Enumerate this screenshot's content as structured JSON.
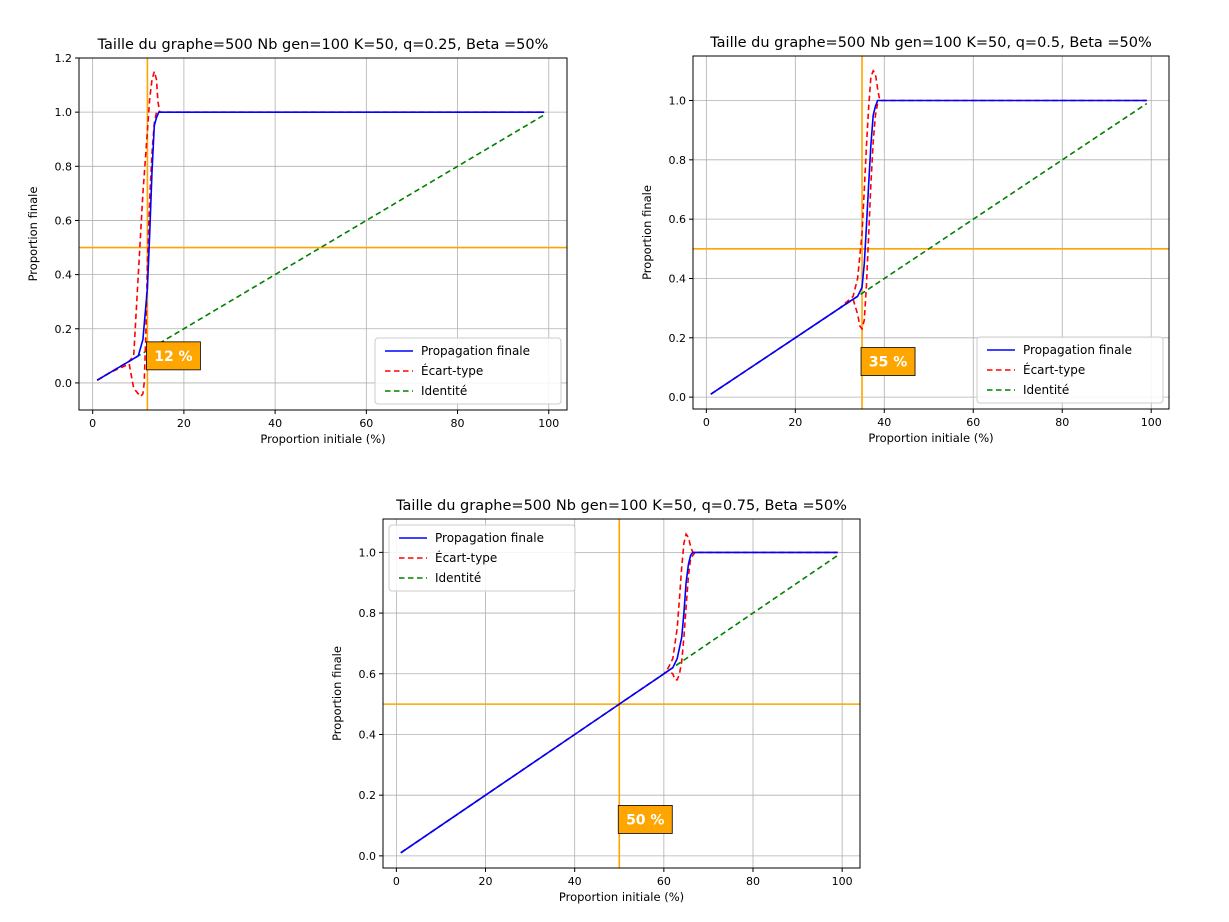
{
  "figure": {
    "colors": {
      "propagation": "#0000ff",
      "ecart": "#ff0000",
      "identite": "#008000",
      "threshold": "#ffa500",
      "grid": "#b0b0b0"
    }
  },
  "chart_data": [
    {
      "type": "line",
      "title": "Taille du graphe=500 Nb gen=100 K=50, q=0.25, Beta =50%",
      "xlabel": "Proportion initiale (%)",
      "ylabel": "Proportion finale",
      "xlim": [
        -3,
        104
      ],
      "ylim": [
        -0.1,
        1.2
      ],
      "xticks": [
        0,
        20,
        40,
        60,
        80,
        100
      ],
      "yticks": [
        0.0,
        0.2,
        0.4,
        0.6,
        0.8,
        1.0,
        1.2
      ],
      "ytick_labels": [
        "0.0",
        "0.2",
        "0.4",
        "0.6",
        "0.8",
        "1.0",
        "1.2"
      ],
      "grid": true,
      "legend_position": "lower-right",
      "vline_x": 12,
      "hline_y": 0.5,
      "annotation": {
        "text": "12 %",
        "x": 12,
        "y": 0.1
      },
      "series": [
        {
          "name": "Propagation finale",
          "style": "solid",
          "color": "#0000ff",
          "x": [
            1,
            4,
            8,
            10,
            11,
            12,
            12.5,
            13,
            13.5,
            14,
            14.5,
            15,
            20,
            40,
            60,
            80,
            99
          ],
          "y": [
            0.01,
            0.04,
            0.08,
            0.1,
            0.16,
            0.35,
            0.55,
            0.78,
            0.95,
            0.98,
            1.0,
            1.0,
            1.0,
            1.0,
            1.0,
            1.0,
            1.0
          ]
        },
        {
          "name": "Écart-type",
          "style": "dashed",
          "color": "#ff0000",
          "x": [
            1,
            4,
            8,
            9,
            10,
            11,
            12,
            12.5,
            13,
            13.5,
            14,
            14.3,
            14.7,
            15,
            20,
            40,
            60,
            80,
            99
          ],
          "y": [
            0.01,
            0.04,
            0.08,
            0.1,
            0.4,
            0.7,
            0.93,
            1.05,
            1.12,
            1.15,
            1.12,
            1.04,
            1.0,
            1.0,
            1.0,
            1.0,
            1.0,
            1.0,
            1.0
          ],
          "x2": [
            1,
            4,
            8,
            9,
            10,
            10.5,
            11,
            11.3,
            11.7,
            12,
            12.5,
            13,
            13.5,
            14,
            15
          ],
          "y2": [
            0.01,
            0.04,
            0.07,
            -0.02,
            -0.04,
            -0.05,
            -0.04,
            0.0,
            0.2,
            0.45,
            0.68,
            0.85,
            0.96,
            1.0,
            1.0
          ]
        },
        {
          "name": "Identité",
          "style": "dashed",
          "color": "#008000",
          "x": [
            1,
            99
          ],
          "y": [
            0.01,
            0.99
          ]
        }
      ]
    },
    {
      "type": "line",
      "title": "Taille du graphe=500 Nb gen=100 K=50, q=0.5, Beta =50%",
      "xlabel": "Proportion initiale (%)",
      "ylabel": "Proportion finale",
      "xlim": [
        -3,
        104
      ],
      "ylim": [
        -0.04,
        1.15
      ],
      "xticks": [
        0,
        20,
        40,
        60,
        80,
        100
      ],
      "yticks": [
        0.0,
        0.2,
        0.4,
        0.6,
        0.8,
        1.0
      ],
      "ytick_labels": [
        "0.0",
        "0.2",
        "0.4",
        "0.6",
        "0.8",
        "1.0"
      ],
      "grid": true,
      "legend_position": "lower-right",
      "vline_x": 35,
      "hline_y": 0.5,
      "annotation": {
        "text": "35 %",
        "x": 35,
        "y": 0.12
      },
      "series": [
        {
          "name": "Propagation finale",
          "style": "solid",
          "color": "#0000ff",
          "x": [
            1,
            10,
            20,
            30,
            33,
            34,
            35,
            35.5,
            36,
            36.5,
            37,
            37.5,
            38,
            38.5,
            39,
            50,
            70,
            99
          ],
          "y": [
            0.01,
            0.1,
            0.2,
            0.3,
            0.33,
            0.34,
            0.37,
            0.45,
            0.58,
            0.72,
            0.85,
            0.95,
            0.98,
            1.0,
            1.0,
            1.0,
            1.0,
            1.0
          ]
        },
        {
          "name": "Écart-type",
          "style": "dashed",
          "color": "#ff0000",
          "x": [
            1,
            10,
            20,
            30,
            33,
            34,
            35,
            35.5,
            36,
            36.5,
            37,
            37.5,
            38,
            38.5,
            39,
            50,
            70,
            99
          ],
          "y": [
            0.01,
            0.1,
            0.2,
            0.3,
            0.34,
            0.4,
            0.55,
            0.7,
            0.85,
            0.98,
            1.08,
            1.1,
            1.09,
            1.04,
            1.0,
            1.0,
            1.0,
            1.0
          ],
          "x2": [
            33,
            34,
            34.5,
            35,
            35.5,
            36,
            36.5,
            37,
            37.5,
            38,
            38.5,
            39
          ],
          "y2": [
            0.33,
            0.28,
            0.24,
            0.23,
            0.26,
            0.38,
            0.55,
            0.72,
            0.86,
            0.95,
            0.99,
            1.0
          ]
        },
        {
          "name": "Identité",
          "style": "dashed",
          "color": "#008000",
          "x": [
            1,
            99
          ],
          "y": [
            0.01,
            0.99
          ]
        }
      ]
    },
    {
      "type": "line",
      "title": "Taille du graphe=500 Nb gen=100 K=50, q=0.75, Beta =50%",
      "xlabel": "Proportion initiale (%)",
      "ylabel": "Proportion finale",
      "xlim": [
        -3,
        104
      ],
      "ylim": [
        -0.04,
        1.11
      ],
      "xticks": [
        0,
        20,
        40,
        60,
        80,
        100
      ],
      "yticks": [
        0.0,
        0.2,
        0.4,
        0.6,
        0.8,
        1.0
      ],
      "ytick_labels": [
        "0.0",
        "0.2",
        "0.4",
        "0.6",
        "0.8",
        "1.0"
      ],
      "grid": true,
      "legend_position": "upper-left",
      "vline_x": 50,
      "hline_y": 0.5,
      "annotation": {
        "text": "50 %",
        "x": 50,
        "y": 0.12
      },
      "series": [
        {
          "name": "Propagation finale",
          "style": "solid",
          "color": "#0000ff",
          "x": [
            1,
            20,
            40,
            50,
            60,
            61,
            62,
            63,
            64,
            64.5,
            65,
            65.5,
            66,
            66.5,
            67,
            80,
            99
          ],
          "y": [
            0.01,
            0.2,
            0.4,
            0.5,
            0.6,
            0.61,
            0.62,
            0.65,
            0.72,
            0.8,
            0.9,
            0.96,
            0.99,
            1.0,
            1.0,
            1.0,
            1.0
          ]
        },
        {
          "name": "Écart-type",
          "style": "dashed",
          "color": "#ff0000",
          "x": [
            1,
            20,
            40,
            50,
            60,
            61,
            62,
            63,
            63.5,
            64,
            64.5,
            65,
            65.5,
            66,
            66.5,
            67,
            80,
            99
          ],
          "y": [
            0.01,
            0.2,
            0.4,
            0.5,
            0.6,
            0.62,
            0.65,
            0.75,
            0.85,
            0.95,
            1.03,
            1.06,
            1.05,
            1.02,
            1.0,
            1.0,
            1.0,
            1.0
          ],
          "x2": [
            60,
            61,
            62,
            62.5,
            63,
            63.5,
            64,
            64.5,
            65,
            65.5,
            66,
            67
          ],
          "y2": [
            0.6,
            0.61,
            0.6,
            0.58,
            0.58,
            0.6,
            0.64,
            0.72,
            0.82,
            0.92,
            0.98,
            1.0
          ]
        },
        {
          "name": "Identité",
          "style": "dashed",
          "color": "#008000",
          "x": [
            1,
            99
          ],
          "y": [
            0.01,
            0.99
          ]
        }
      ]
    }
  ]
}
